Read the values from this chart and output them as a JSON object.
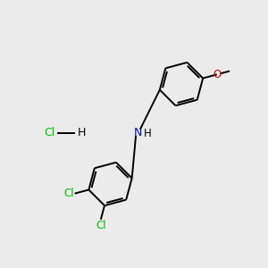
{
  "background_color": "#ebebeb",
  "bond_color": "#000000",
  "N_color": "#0000cc",
  "O_color": "#cc0000",
  "Cl_color": "#00bb00",
  "figsize": [
    3.0,
    3.0
  ],
  "dpi": 100,
  "xlim": [
    0,
    10
  ],
  "ylim": [
    0,
    10
  ]
}
